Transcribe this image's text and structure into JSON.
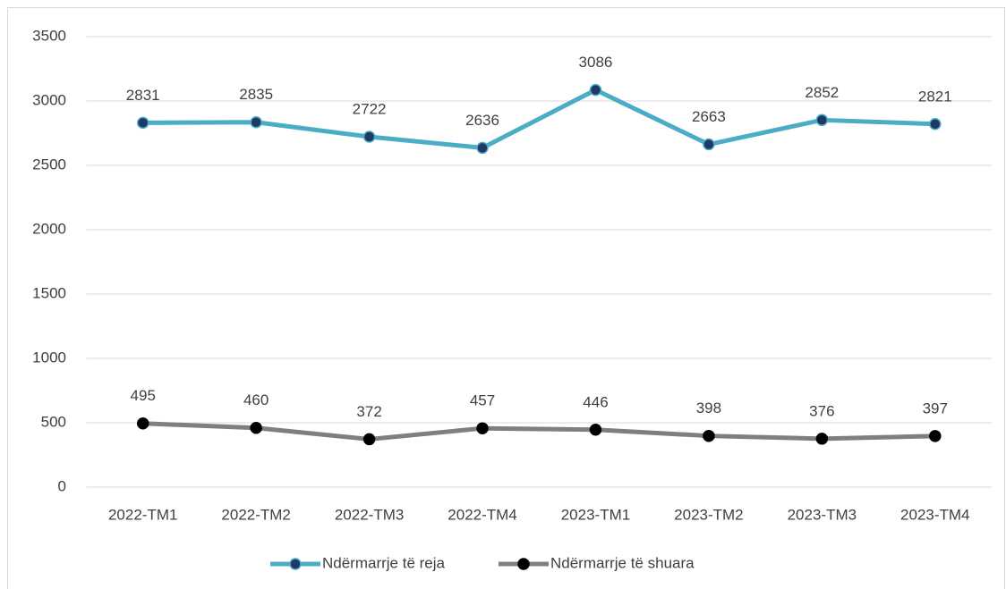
{
  "chart_data": {
    "type": "line",
    "categories": [
      "2022-TM1",
      "2022-TM2",
      "2022-TM3",
      "2022-TM4",
      "2023-TM1",
      "2023-TM2",
      "2023-TM3",
      "2023-TM4"
    ],
    "series": [
      {
        "name": "Ndërmarrje të reja",
        "color": "#4bacc6",
        "values": [
          2831,
          2835,
          2722,
          2636,
          3086,
          2663,
          2852,
          2821
        ]
      },
      {
        "name": "Ndërmarrje të shuara",
        "color": "#7f7f7f",
        "values": [
          495,
          460,
          372,
          457,
          446,
          398,
          376,
          397
        ]
      }
    ],
    "ylim": [
      0,
      3500
    ],
    "yticks": [
      0,
      500,
      1000,
      1500,
      2000,
      2500,
      3000,
      3500
    ],
    "grid": true,
    "legend": "bottom"
  }
}
